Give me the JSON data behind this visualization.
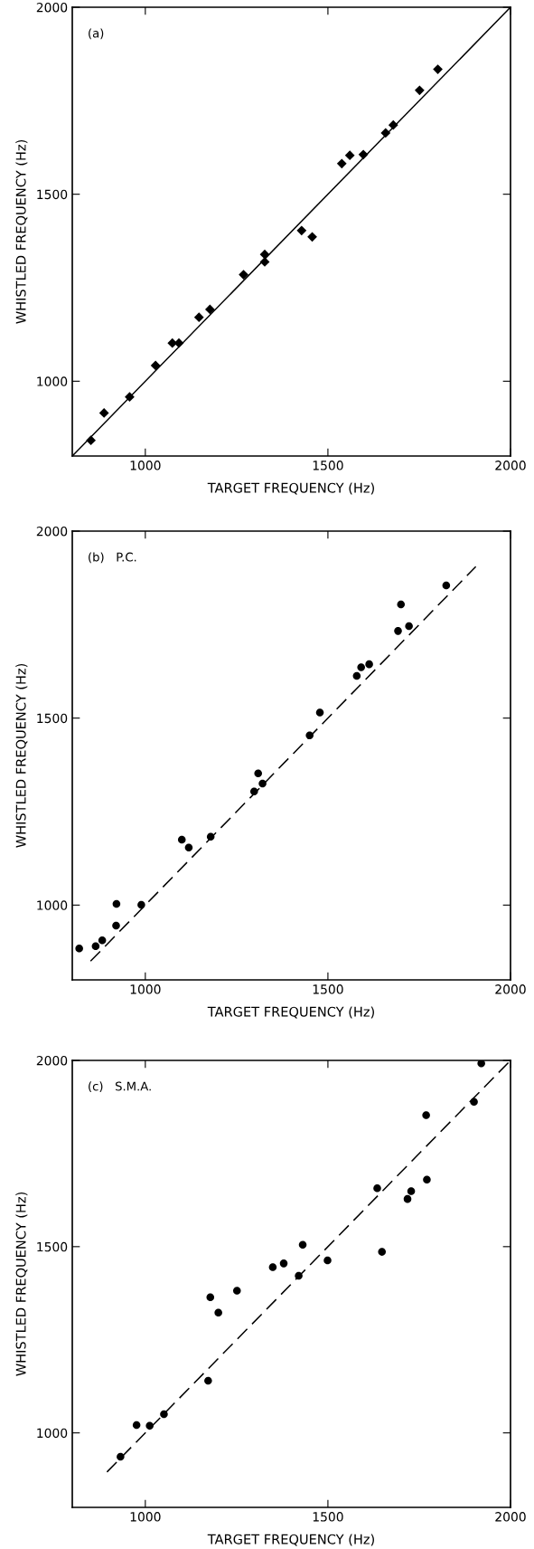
{
  "chart_data": [
    {
      "type": "scatter",
      "xlabel": "TARGET FREQUENCY (Hz)",
      "ylabel": "WHISTLED FREQUENCY (Hz)",
      "annotations": [
        "(a)"
      ],
      "xlim": [
        800,
        2000
      ],
      "ylim": [
        800,
        2000
      ],
      "xticks": [
        1000,
        1500,
        2000
      ],
      "yticks": [
        1000,
        1500,
        2000
      ],
      "grid": false,
      "legend": false,
      "series": [
        {
          "color": "#000000",
          "marker": "diamond",
          "x": [
            851,
            887,
            957,
            1028,
            1074,
            1092,
            1147,
            1177,
            1269,
            1327,
            1327,
            1428,
            1457,
            1538,
            1560,
            1597,
            1658,
            1679,
            1751,
            1801
          ],
          "values": [
            842,
            915,
            958,
            1042,
            1102,
            1102,
            1171,
            1192,
            1285,
            1339,
            1319,
            1403,
            1386,
            1582,
            1604,
            1606,
            1664,
            1685,
            1778,
            1834
          ]
        },
        {
          "type": "line",
          "color": "#000000",
          "marker": "none",
          "line_style": "solid",
          "x": [
            800,
            2000
          ],
          "values": [
            800,
            2000
          ]
        }
      ]
    },
    {
      "type": "scatter",
      "xlabel": "TARGET FREQUENCY (Hz)",
      "ylabel": "WHISTLED FREQUENCY (Hz)",
      "annotations": [
        "(b)   P.C."
      ],
      "xlim": [
        800,
        2000
      ],
      "ylim": [
        800,
        2000
      ],
      "xticks": [
        1000,
        1500,
        2000
      ],
      "yticks": [
        1000,
        1500,
        2000
      ],
      "grid": false,
      "legend": false,
      "series": [
        {
          "color": "#000000",
          "marker": "circle",
          "x": [
            819,
            864,
            882,
            921,
            920,
            989,
            1100,
            1119,
            1179,
            1298,
            1309,
            1321,
            1450,
            1478,
            1579,
            1591,
            1613,
            1692,
            1700,
            1722,
            1824
          ],
          "values": [
            884,
            890,
            906,
            1003,
            945,
            1001,
            1175,
            1154,
            1183,
            1304,
            1352,
            1325,
            1454,
            1515,
            1613,
            1636,
            1644,
            1733,
            1804,
            1746,
            1855
          ]
        },
        {
          "type": "line",
          "color": "#000000",
          "marker": "none",
          "line_style": "dashed",
          "x": [
            850,
            1905
          ],
          "values": [
            850,
            1905
          ]
        }
      ]
    },
    {
      "type": "scatter",
      "xlabel": "TARGET FREQUENCY (Hz)",
      "ylabel": "WHISTLED FREQUENCY (Hz)",
      "annotations": [
        "(c)   S.M.A."
      ],
      "xlim": [
        800,
        2000
      ],
      "ylim": [
        800,
        2000
      ],
      "xticks": [
        1000,
        1500,
        2000
      ],
      "yticks": [
        1000,
        1500,
        2000
      ],
      "grid": false,
      "legend": false,
      "series": [
        {
          "color": "#000000",
          "marker": "circle",
          "x": [
            932,
            976,
            1012,
            1051,
            1172,
            1178,
            1200,
            1251,
            1349,
            1379,
            1420,
            1431,
            1499,
            1635,
            1648,
            1718,
            1728,
            1771,
            1769,
            1900,
            1920
          ],
          "values": [
            936,
            1021,
            1019,
            1050,
            1140,
            1364,
            1323,
            1382,
            1445,
            1455,
            1422,
            1505,
            1463,
            1657,
            1486,
            1628,
            1649,
            1680,
            1853,
            1889,
            1992
          ]
        },
        {
          "type": "line",
          "color": "#000000",
          "marker": "none",
          "line_style": "dashed",
          "x": [
            895,
            2000
          ],
          "values": [
            895,
            2000
          ]
        }
      ]
    }
  ]
}
